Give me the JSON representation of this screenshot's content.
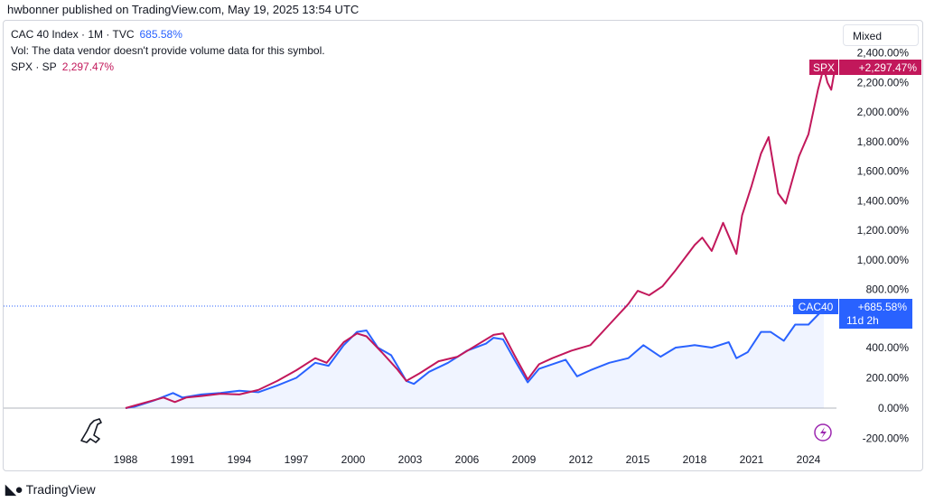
{
  "header": {
    "published": "hwbonner published on TradingView.com, May 19, 2025 13:54 UTC"
  },
  "legend": {
    "main_label": "CAC 40 Index · 1M · TVC",
    "main_value": "685.58%",
    "vol_text": "Vol: The data vendor doesn't provide volume data for this symbol.",
    "compare_label": "SPX · SP",
    "compare_value": "2,297.47%"
  },
  "scale_button": "Mixed",
  "footer": {
    "brand": "TradingView"
  },
  "badges": {
    "spx_symbol": "SPX",
    "spx_value": "+2,297.47%",
    "cac_symbol": "CAC40",
    "cac_value": "+685.58%",
    "cac_countdown": "11d 2h"
  },
  "colors": {
    "cac": "#2962ff",
    "spx": "#c2185b",
    "axis_text": "#131722"
  },
  "chart_data": {
    "type": "line",
    "x_tick_labels": [
      "1988",
      "1991",
      "1994",
      "1997",
      "2000",
      "2003",
      "2006",
      "2009",
      "2012",
      "2015",
      "2018",
      "2021",
      "2024"
    ],
    "y_tick_labels": [
      "-200.00%",
      "0.00%",
      "200.00%",
      "400.00%",
      "800.00%",
      "1,000.00%",
      "1,200.00%",
      "1,400.00%",
      "1,600.00%",
      "1,800.00%",
      "2,000.00%",
      "2,200.00%",
      "2,400.00%"
    ],
    "y_tick_values": [
      -200,
      0,
      200,
      400,
      800,
      1000,
      1200,
      1400,
      1600,
      1800,
      2000,
      2200,
      2400
    ],
    "y_scale": "mixed",
    "series": [
      {
        "name": "CAC 40 Index",
        "color": "#2962ff",
        "x": [
          1988.0,
          1988.5,
          1989.5,
          1990.5,
          1991.0,
          1992.0,
          1993.0,
          1994.0,
          1995.0,
          1996.0,
          1997.0,
          1998.0,
          1998.7,
          1999.5,
          2000.2,
          2000.7,
          2001.3,
          2002.0,
          2002.8,
          2003.2,
          2004.0,
          2005.0,
          2006.0,
          2007.0,
          2007.4,
          2007.9,
          2008.5,
          2009.2,
          2009.8,
          2010.5,
          2011.2,
          2011.8,
          2012.5,
          2013.5,
          2014.5,
          2015.3,
          2016.2,
          2017.0,
          2018.0,
          2018.9,
          2019.8,
          2020.2,
          2020.8,
          2021.5,
          2022.0,
          2022.7,
          2023.3,
          2024.0,
          2024.6,
          2025.0,
          2025.4
        ],
        "y": [
          0,
          10,
          50,
          100,
          70,
          90,
          100,
          115,
          105,
          150,
          200,
          300,
          280,
          420,
          510,
          520,
          400,
          350,
          180,
          160,
          240,
          300,
          380,
          430,
          470,
          460,
          320,
          170,
          260,
          290,
          320,
          210,
          250,
          300,
          330,
          420,
          340,
          400,
          420,
          400,
          440,
          330,
          370,
          510,
          510,
          450,
          560,
          560,
          640,
          680,
          686
        ]
      },
      {
        "name": "SPX",
        "color": "#c2185b",
        "x": [
          1988.0,
          1989.0,
          1990.0,
          1990.6,
          1991.2,
          1992.0,
          1993.0,
          1994.0,
          1995.0,
          1996.0,
          1997.0,
          1998.0,
          1998.6,
          1999.5,
          2000.2,
          2000.7,
          2001.5,
          2002.3,
          2002.8,
          2003.5,
          2004.5,
          2005.5,
          2006.5,
          2007.4,
          2007.9,
          2008.5,
          2009.2,
          2009.8,
          2010.5,
          2011.5,
          2012.5,
          2013.5,
          2014.5,
          2015.0,
          2015.6,
          2016.3,
          2017.0,
          2018.0,
          2018.4,
          2018.9,
          2019.5,
          2020.2,
          2020.5,
          2021.0,
          2021.5,
          2021.9,
          2022.4,
          2022.8,
          2023.5,
          2024.0,
          2024.5,
          2024.8,
          2025.0,
          2025.2,
          2025.4
        ],
        "y": [
          0,
          35,
          70,
          40,
          70,
          80,
          95,
          90,
          120,
          180,
          250,
          330,
          300,
          440,
          500,
          480,
          370,
          260,
          180,
          230,
          310,
          340,
          420,
          490,
          500,
          350,
          190,
          290,
          330,
          380,
          420,
          560,
          700,
          790,
          760,
          820,
          930,
          1100,
          1150,
          1060,
          1250,
          1040,
          1300,
          1500,
          1720,
          1830,
          1450,
          1380,
          1700,
          1850,
          2150,
          2300,
          2200,
          2150,
          2297
        ]
      }
    ]
  }
}
